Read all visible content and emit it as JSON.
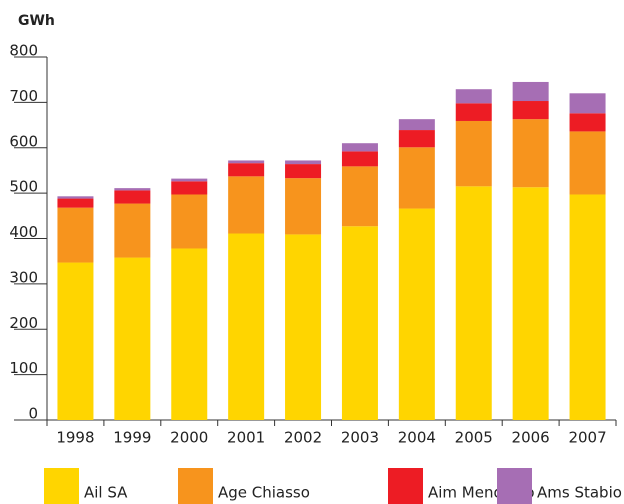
{
  "chart_data": {
    "type": "stacked-bar",
    "y_label": "GWh",
    "categories": [
      "1998",
      "1999",
      "2000",
      "2001",
      "2002",
      "2003",
      "2004",
      "2005",
      "2006",
      "2007"
    ],
    "series": [
      {
        "name": "Ail SA",
        "color": "#ffd500",
        "values": [
          347,
          358,
          378,
          411,
          409,
          427,
          466,
          515,
          513,
          497
        ]
      },
      {
        "name": "Age Chiasso",
        "color": "#f7941d",
        "values": [
          121,
          119,
          119,
          126,
          124,
          132,
          135,
          144,
          150,
          139
        ]
      },
      {
        "name": "Aim Mendrisio",
        "color": "#ed1c24",
        "values": [
          20,
          29,
          29,
          29,
          31,
          33,
          38,
          39,
          40,
          40
        ]
      },
      {
        "name": "Ams Stabio",
        "color": "#a66eb4",
        "values": [
          5,
          5,
          6,
          6,
          8,
          18,
          24,
          31,
          42,
          44
        ]
      }
    ],
    "ylim": [
      0,
      800
    ],
    "yticks": [
      0,
      100,
      200,
      300,
      400,
      500,
      600,
      700,
      800
    ]
  }
}
